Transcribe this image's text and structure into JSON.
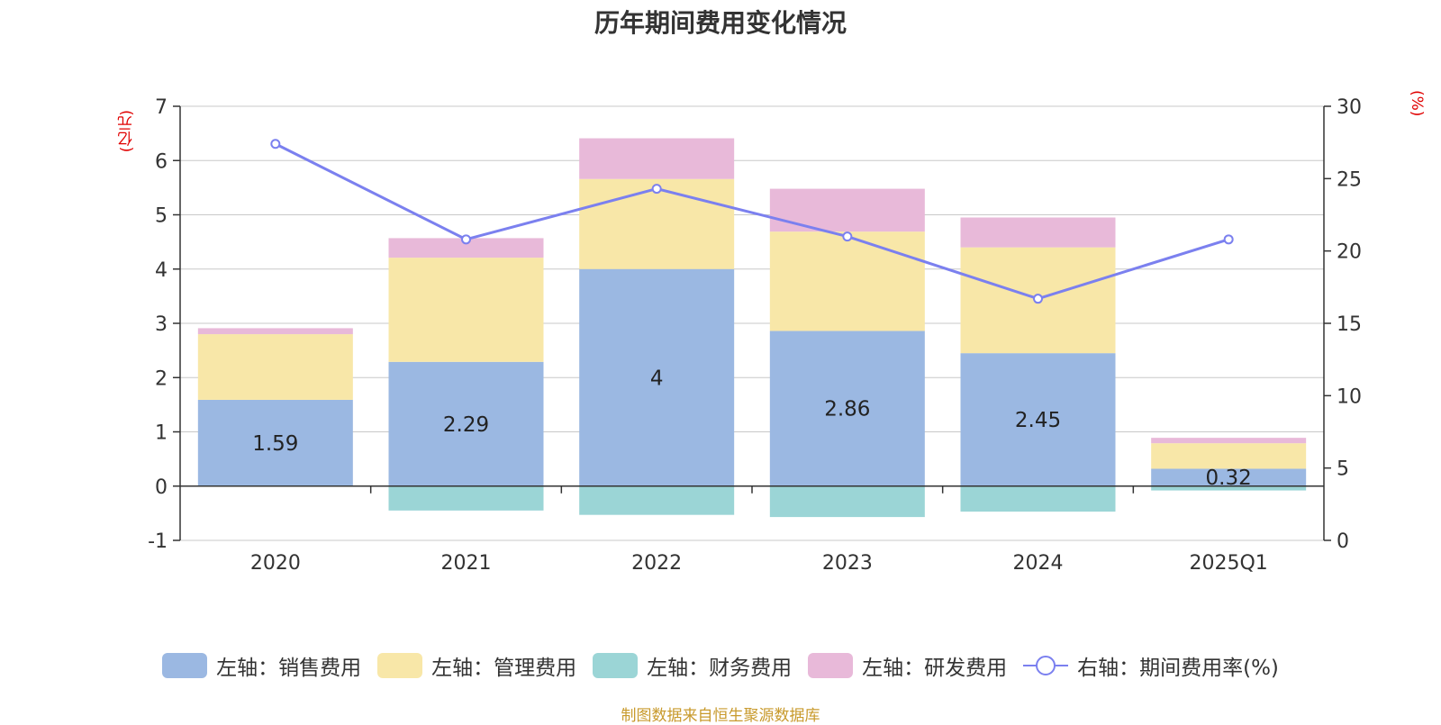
{
  "chart_data": {
    "type": "bar",
    "stacked": true,
    "title": "历年期间费用变化情况",
    "categories": [
      "2020",
      "2021",
      "2022",
      "2023",
      "2024",
      "2025Q1"
    ],
    "left_axis": {
      "unit": "(亿元)",
      "range": [
        -1,
        7
      ],
      "ticks": [
        "-1",
        "0",
        "1",
        "2",
        "3",
        "4",
        "5",
        "6",
        "7"
      ]
    },
    "right_axis": {
      "unit": "(%)",
      "range": [
        0,
        30
      ],
      "ticks": [
        "0",
        "5",
        "10",
        "15",
        "20",
        "25",
        "30"
      ]
    },
    "grid": true,
    "legend_position": "bottom",
    "series": [
      {
        "name": "左轴：销售费用",
        "axis": "left",
        "type": "bar",
        "color": "#9bb8e2",
        "values": [
          1.59,
          2.29,
          4,
          2.86,
          2.45,
          0.32
        ],
        "data_labels": [
          "1.59",
          "2.29",
          "4",
          "2.86",
          "2.45",
          "0.32"
        ]
      },
      {
        "name": "左轴：管理费用",
        "axis": "left",
        "type": "bar",
        "color": "#f8e7a8",
        "values": [
          1.21,
          1.92,
          1.66,
          1.83,
          1.95,
          0.47
        ]
      },
      {
        "name": "左轴：财务费用",
        "axis": "left",
        "type": "bar",
        "color": "#9bd5d6",
        "values": [
          0,
          -0.45,
          -0.53,
          -0.57,
          -0.47,
          -0.08
        ]
      },
      {
        "name": "左轴：研发费用",
        "axis": "left",
        "type": "bar",
        "color": "#e8b9d9",
        "values": [
          0.11,
          0.36,
          0.75,
          0.79,
          0.55,
          0.1
        ]
      },
      {
        "name": "右轴：期间费用率(%)",
        "axis": "right",
        "type": "line",
        "color": "#7b80ef",
        "values": [
          27.4,
          20.8,
          24.3,
          21.0,
          16.7,
          20.8
        ]
      }
    ]
  },
  "source": "制图数据来自恒生聚源数据库"
}
